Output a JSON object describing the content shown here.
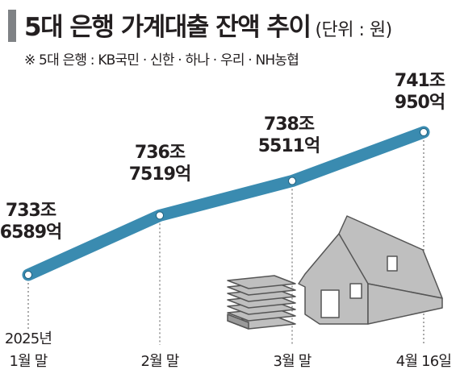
{
  "header": {
    "title": "5대 은행 가계대출 잔액 추이",
    "unit": "(단위 : 원)",
    "note": "※ 5대 은행 : KB국민 · 신한 · 하나 · 우리 · NH농협"
  },
  "colors": {
    "line": "#3a8bb0",
    "marker": "#ffffff",
    "accent_bar": "#7f8285",
    "guide": "#555555",
    "illustration_fill": "#bfbfbf",
    "illustration_stroke": "#555555"
  },
  "illustration": {
    "icons": [
      "money-stack-icon",
      "house-icon"
    ]
  },
  "chart_data": {
    "type": "line",
    "categories": [
      [
        "2025년",
        "1월 말"
      ],
      [
        "2월 말"
      ],
      [
        "3월 말"
      ],
      [
        "4월 16일"
      ]
    ],
    "values": [
      733.6589,
      736.7519,
      738.5511,
      741.095
    ],
    "value_labels": [
      [
        "733조",
        "6589억"
      ],
      [
        "736조",
        "7519억"
      ],
      [
        "738조",
        "5511억"
      ],
      [
        "741조",
        "950억"
      ]
    ],
    "title": "5대 은행 가계대출 잔액 추이",
    "xlabel": "",
    "ylabel": "",
    "grid": false,
    "legend": "none"
  }
}
